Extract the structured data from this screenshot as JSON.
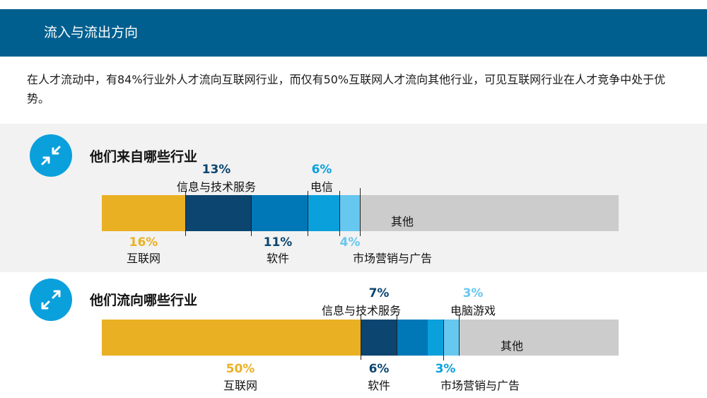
{
  "header": {
    "title": "流入与流出方向"
  },
  "intro": {
    "text": "在人才流动中，有84%行业外人才流向互联网行业，而仅有50%互联网人才流向其他行业，可见互联网行业在人才竞争中处于优势。"
  },
  "colors": {
    "header_bg": "#005f8f",
    "icon_bg": "#0aa0dc",
    "internet": "#eab024",
    "it_services": "#0b4570",
    "software": "#0077b6",
    "telecom": "#0aa0dc",
    "marketing": "#66c7ef",
    "other": "#cccccc"
  },
  "inflow": {
    "title": "他们来自哪些行业",
    "icon": "arrows-inward-icon",
    "segments": [
      {
        "label": "互联网",
        "pct": "16%"
      },
      {
        "label": "信息与技术服务",
        "pct": "13%"
      },
      {
        "label": "软件",
        "pct": "11%"
      },
      {
        "label": "电信",
        "pct": "6%"
      },
      {
        "label": "市场营销与广告",
        "pct": "4%"
      },
      {
        "label": "其他",
        "pct": ""
      }
    ]
  },
  "outflow": {
    "title": "他们流向哪些行业",
    "icon": "arrows-outward-icon",
    "segments": [
      {
        "label": "互联网",
        "pct": "50%"
      },
      {
        "label": "信息与技术服务",
        "pct": "7%"
      },
      {
        "label": "软件",
        "pct": "6%"
      },
      {
        "label": "市场营销与广告",
        "pct": "3%"
      },
      {
        "label": "电脑游戏",
        "pct": "3%"
      },
      {
        "label": "其他",
        "pct": ""
      }
    ]
  }
}
